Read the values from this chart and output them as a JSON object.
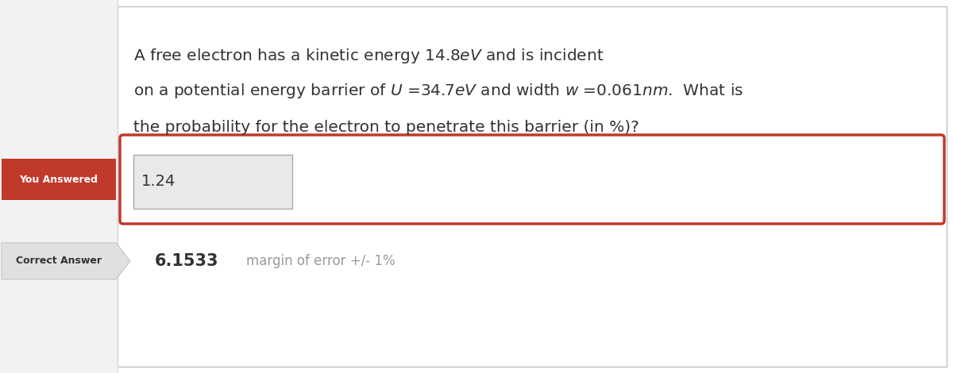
{
  "bg_color": "#ffffff",
  "left_sidebar_color": "#f2f2f2",
  "left_sidebar_border": "#dddddd",
  "question_line1": "A free electron has a kinetic energy 14.8$eV$ and is incident",
  "question_line2": "on a potential energy barrier of $U$ =34.7$eV$ and width $w$ =0.061$nm$.  What is",
  "question_line3": "the probability for the electron to penetrate this barrier (in %)?",
  "you_answered_label": "You Answered",
  "you_answered_bg": "#c0392b",
  "you_answered_text_color": "#ffffff",
  "user_answer": "1.24",
  "answer_box_border": "#c0392b",
  "answer_box_bg": "#ffffff",
  "input_box_bg": "#e9e9e9",
  "input_box_border": "#aaaaaa",
  "correct_answer_label": "Correct Answer",
  "correct_tab_bg": "#e0e0e0",
  "correct_tab_border": "#cccccc",
  "correct_answer_value": "6.1533",
  "margin_text": "margin of error +/- 1%",
  "outer_border_color": "#c0c0c0",
  "text_color": "#333333",
  "margin_color": "#999999",
  "font_size_question": 14.5,
  "font_size_answer": 14,
  "font_size_label": 9,
  "font_size_correct_val": 15,
  "font_size_margin": 12
}
